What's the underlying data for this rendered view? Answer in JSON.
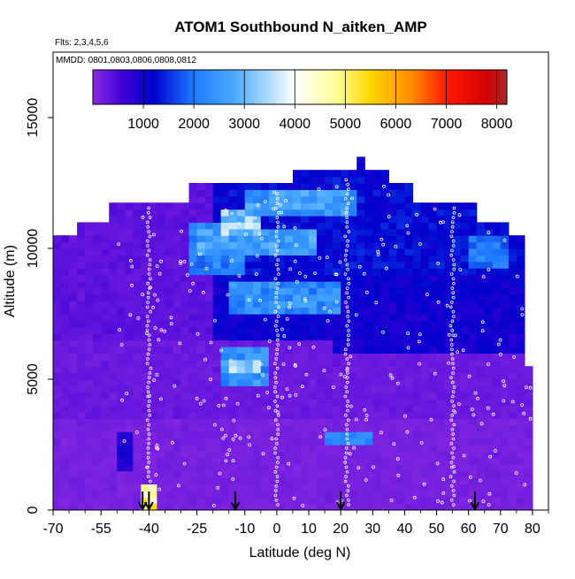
{
  "chart_data": {
    "type": "heatmap",
    "title": "ATOM1 Southbound N_aitken_AMP",
    "flights_label": "Flts: 2,3,4,5,6",
    "dates_label": "MMDD: 0801,0803,0806,0808,0812",
    "xlabel": "Latitude (deg N)",
    "ylabel": "Altitude (m)",
    "xlim": [
      -70,
      85
    ],
    "ylim": [
      0,
      17500
    ],
    "x_ticks": [
      -70,
      -55,
      -40,
      -25,
      -10,
      0,
      10,
      20,
      30,
      40,
      50,
      60,
      70,
      80
    ],
    "x_tick_labels": [
      "-70",
      "-55",
      "-40",
      "-25",
      "-10",
      "0",
      "10",
      "20",
      "30",
      "40",
      "50",
      "60",
      "70",
      "80"
    ],
    "y_ticks": [
      0,
      5000,
      10000,
      15000
    ],
    "y_tick_labels": [
      "0",
      "5000",
      "10000",
      "15000"
    ],
    "colorbar": {
      "range": [
        0,
        8200
      ],
      "ticks": [
        1000,
        2000,
        3000,
        4000,
        5000,
        6000,
        7000,
        8000
      ],
      "tick_labels": [
        "1000",
        "2000",
        "3000",
        "4000",
        "5000",
        "6000",
        "7000",
        "8000"
      ],
      "stops": [
        {
          "v": 0,
          "c": "#8a2be2"
        },
        {
          "v": 600,
          "c": "#3d00d8"
        },
        {
          "v": 1200,
          "c": "#0000cd"
        },
        {
          "v": 2000,
          "c": "#1e7bff"
        },
        {
          "v": 2800,
          "c": "#4aaaff"
        },
        {
          "v": 3500,
          "c": "#b0dcff"
        },
        {
          "v": 4000,
          "c": "#ffffff"
        },
        {
          "v": 4800,
          "c": "#ffff99"
        },
        {
          "v": 5500,
          "c": "#ffd700"
        },
        {
          "v": 6300,
          "c": "#ff8c00"
        },
        {
          "v": 7000,
          "c": "#ff1a00"
        },
        {
          "v": 7800,
          "c": "#d40000"
        },
        {
          "v": 8200,
          "c": "#a52a2a"
        }
      ]
    },
    "coverage": [
      {
        "x0": -70,
        "x1": 77,
        "y0": 0,
        "y1": 10500
      },
      {
        "x0": -62,
        "x1": 73,
        "y0": 10500,
        "y1": 11000
      },
      {
        "x0": -52,
        "x1": 63,
        "y0": 11000,
        "y1": 11800
      },
      {
        "x0": -27,
        "x1": 42,
        "y0": 11800,
        "y1": 12400
      },
      {
        "x0": 5,
        "x1": 35,
        "y0": 12400,
        "y1": 12900
      },
      {
        "x0": 25,
        "x1": 27,
        "y0": 12900,
        "y1": 13500
      },
      {
        "x0": 77,
        "x1": 80,
        "y0": 0,
        "y1": 5500
      },
      {
        "x0": 73,
        "x1": 77,
        "y0": 5500,
        "y1": 10000
      }
    ],
    "regions": [
      {
        "x0": -70,
        "x1": 80,
        "y0": 0,
        "y1": 3500,
        "v": 150
      },
      {
        "x0": -70,
        "x1": 80,
        "y0": 3500,
        "y1": 6500,
        "v": 250
      },
      {
        "x0": -70,
        "x1": -20,
        "y0": 6500,
        "y1": 13500,
        "v": 350
      },
      {
        "x0": -20,
        "x1": 80,
        "y0": 6500,
        "y1": 9000,
        "v": 1100
      },
      {
        "x0": -20,
        "x1": 80,
        "y0": 9000,
        "y1": 13500,
        "v": 1250
      },
      {
        "x0": 18,
        "x1": 80,
        "y0": 6000,
        "y1": 8000,
        "v": 1000
      },
      {
        "x0": -28,
        "x1": -10,
        "y0": 9000,
        "y1": 11000,
        "v": 2100
      },
      {
        "x0": -25,
        "x1": 12,
        "y0": 9800,
        "y1": 10800,
        "v": 2600
      },
      {
        "x0": -18,
        "x1": -5,
        "y0": 10500,
        "y1": 11600,
        "v": 3300
      },
      {
        "x0": -10,
        "x1": 25,
        "y0": 11200,
        "y1": 12200,
        "v": 2500
      },
      {
        "x0": -15,
        "x1": 20,
        "y0": 7500,
        "y1": 8800,
        "v": 2300
      },
      {
        "x0": -17,
        "x1": -2,
        "y0": 4800,
        "y1": 6200,
        "v": 2400
      },
      {
        "x0": -15,
        "x1": -5,
        "y0": 5200,
        "y1": 5700,
        "v": 3300
      },
      {
        "x0": 16,
        "x1": 30,
        "y0": 2400,
        "y1": 3000,
        "v": 2200
      },
      {
        "x0": -50,
        "x1": -45,
        "y0": 1500,
        "y1": 3000,
        "v": 900
      },
      {
        "x0": 60,
        "x1": 72,
        "y0": 9200,
        "y1": 10500,
        "v": 2000
      },
      {
        "x0": -42,
        "x1": -37,
        "y0": 0,
        "y1": 1000,
        "v": 5000
      }
    ],
    "flight_tracks_x": [
      -43,
      -34,
      -21,
      -10,
      0,
      9,
      21,
      34,
      47,
      60,
      73
    ],
    "profile_tracks_x": [
      -40,
      0,
      22,
      55
    ],
    "arrows_x": [
      -42,
      -40,
      -13,
      20,
      62
    ]
  }
}
